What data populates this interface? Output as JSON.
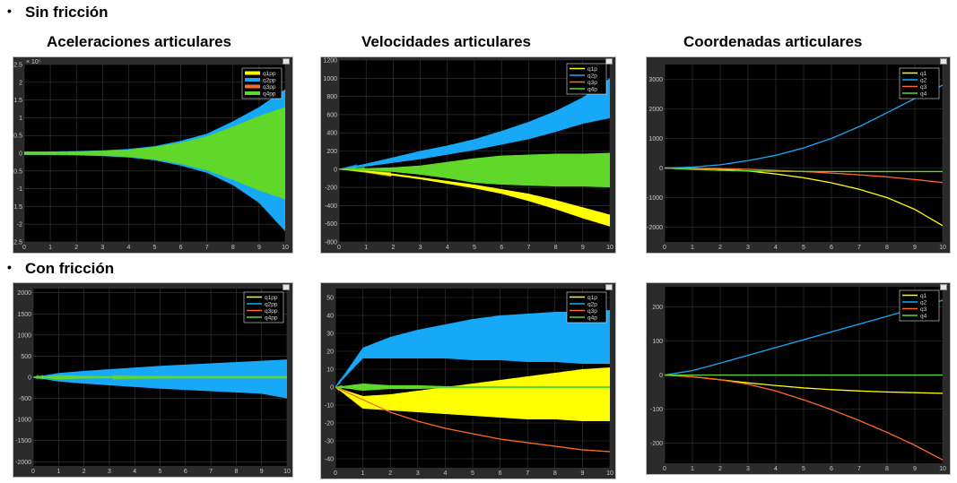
{
  "sections": [
    {
      "bullet": "•",
      "label": "Sin fricción"
    },
    {
      "bullet": "•",
      "label": "Con fricción"
    }
  ],
  "column_titles": [
    "Aceleraciones articulares",
    "Velocidades articulares",
    "Coordenadas articulares"
  ],
  "colors": {
    "q1": "#ffff00",
    "q2": "#18a8f8",
    "q3": "#ff6a2a",
    "q4": "#5fd829",
    "bg": "#000000",
    "grid": "#3a3a3a"
  },
  "chart_data": [
    {
      "type": "line",
      "id": "acc_nofric",
      "x": [
        0,
        1,
        2,
        3,
        4,
        5,
        6,
        7,
        8,
        9,
        10
      ],
      "xlim": [
        0,
        10
      ],
      "ylim": [
        -2.5,
        2.5
      ],
      "xticks": [
        "0",
        "1",
        "2",
        "3",
        "4",
        "5",
        "6",
        "7",
        "8",
        "9",
        "10"
      ],
      "yticks": [
        "-2.5",
        "-2",
        "-1.5",
        "-1",
        "-0.5",
        "0",
        "0.5",
        "1",
        "1.5",
        "2",
        "2.5"
      ],
      "yexponent": "× 10⁵",
      "grid": true,
      "legend": "top-right",
      "legend_style": "thick",
      "series": [
        {
          "name": "q1pp",
          "color": "#ffff00",
          "envelope_upper": [
            0.05,
            0.05,
            0.05,
            0.06,
            0.07,
            0.1,
            0.15,
            0.25,
            0.4,
            0.5,
            0.55
          ],
          "envelope_lower": [
            -0.05,
            -0.05,
            -0.05,
            -0.06,
            -0.07,
            -0.1,
            -0.15,
            -0.25,
            -0.4,
            -0.5,
            -0.55
          ]
        },
        {
          "name": "q2pp",
          "color": "#18a8f8",
          "envelope_upper": [
            0.05,
            0.05,
            0.06,
            0.08,
            0.12,
            0.2,
            0.35,
            0.55,
            0.9,
            1.3,
            1.8
          ],
          "envelope_lower": [
            -0.05,
            -0.05,
            -0.06,
            -0.08,
            -0.12,
            -0.2,
            -0.35,
            -0.55,
            -0.9,
            -1.4,
            -2.2
          ]
        },
        {
          "name": "q3pp",
          "color": "#ff6a2a",
          "envelope_upper": [
            0,
            0,
            0,
            0,
            0,
            0,
            0,
            0,
            0,
            0,
            0
          ],
          "envelope_lower": [
            0,
            0,
            0,
            0,
            0,
            0,
            0,
            0,
            0,
            0,
            0
          ]
        },
        {
          "name": "q4pp",
          "color": "#5fd829",
          "envelope_upper": [
            0.04,
            0.04,
            0.05,
            0.07,
            0.1,
            0.18,
            0.3,
            0.48,
            0.75,
            1.05,
            1.3
          ],
          "envelope_lower": [
            -0.04,
            -0.04,
            -0.05,
            -0.07,
            -0.1,
            -0.18,
            -0.3,
            -0.48,
            -0.75,
            -1.05,
            -1.3
          ]
        }
      ]
    },
    {
      "type": "line",
      "id": "vel_nofric",
      "x": [
        0,
        1,
        2,
        3,
        4,
        5,
        6,
        7,
        8,
        9,
        10
      ],
      "xlim": [
        0,
        10
      ],
      "ylim": [
        -800,
        1200
      ],
      "xticks": [
        "0",
        "1",
        "2",
        "3",
        "4",
        "5",
        "6",
        "7",
        "8",
        "9",
        "10"
      ],
      "yticks": [
        "-800",
        "-600",
        "-400",
        "-200",
        "0",
        "200",
        "400",
        "600",
        "800",
        "1000",
        "1200"
      ],
      "grid": true,
      "legend": "top-right",
      "series": [
        {
          "name": "q1p",
          "color": "#ffff00",
          "envelope_upper": [
            0,
            -20,
            -50,
            -90,
            -130,
            -170,
            -220,
            -270,
            -340,
            -420,
            -500
          ],
          "envelope_lower": [
            0,
            -30,
            -70,
            -110,
            -160,
            -210,
            -270,
            -350,
            -440,
            -540,
            -630
          ]
        },
        {
          "name": "q2p",
          "color": "#18a8f8",
          "envelope_upper": [
            0,
            60,
            130,
            200,
            260,
            330,
            420,
            520,
            640,
            790,
            1000
          ],
          "envelope_lower": [
            0,
            30,
            70,
            110,
            160,
            210,
            270,
            330,
            410,
            500,
            560
          ]
        },
        {
          "name": "q3p",
          "color": "#ff6a2a",
          "envelope_upper": [
            0,
            0,
            0,
            0,
            0,
            0,
            0,
            0,
            0,
            0,
            0
          ],
          "envelope_lower": [
            0,
            0,
            0,
            0,
            0,
            0,
            0,
            0,
            0,
            0,
            0
          ]
        },
        {
          "name": "q4p",
          "color": "#5fd829",
          "envelope_upper": [
            0,
            10,
            20,
            40,
            80,
            120,
            150,
            160,
            170,
            170,
            180
          ],
          "envelope_lower": [
            0,
            -10,
            -30,
            -60,
            -100,
            -150,
            -170,
            -180,
            -190,
            -190,
            -200
          ]
        }
      ]
    },
    {
      "type": "line",
      "id": "pos_nofric",
      "x": [
        0,
        1,
        2,
        3,
        4,
        5,
        6,
        7,
        8,
        9,
        10
      ],
      "xlim": [
        0,
        10
      ],
      "ylim": [
        -2500,
        3500
      ],
      "xticks": [
        "0",
        "1",
        "2",
        "3",
        "4",
        "5",
        "6",
        "7",
        "8",
        "9",
        "10"
      ],
      "yticks": [
        "-2000",
        "-1000",
        "0",
        "1000",
        "2000",
        "3000"
      ],
      "grid": true,
      "legend": "top-right",
      "series": [
        {
          "name": "q1",
          "color": "#ffff00",
          "values": [
            0,
            -10,
            -40,
            -100,
            -200,
            -330,
            -500,
            -720,
            -1000,
            -1400,
            -1950
          ]
        },
        {
          "name": "q2",
          "color": "#18a8f8",
          "values": [
            0,
            30,
            110,
            250,
            430,
            680,
            1000,
            1400,
            1870,
            2350,
            2800
          ]
        },
        {
          "name": "q3",
          "color": "#ff6a2a",
          "values": [
            0,
            -5,
            -20,
            -45,
            -80,
            -120,
            -170,
            -230,
            -300,
            -390,
            -490
          ]
        },
        {
          "name": "q4",
          "color": "#5fd829",
          "values": [
            0,
            -50,
            -80,
            -100,
            -110,
            -115,
            -118,
            -120,
            -120,
            -120,
            -120
          ]
        }
      ]
    },
    {
      "type": "line",
      "id": "acc_fric",
      "x": [
        0,
        1,
        2,
        3,
        4,
        5,
        6,
        7,
        8,
        9,
        10
      ],
      "xlim": [
        0,
        10
      ],
      "ylim": [
        -2100,
        2100
      ],
      "xticks": [
        "0",
        "1",
        "2",
        "3",
        "4",
        "5",
        "6",
        "7",
        "8",
        "9",
        "10"
      ],
      "yticks": [
        "-2000",
        "-1500",
        "-1000",
        "-500",
        "0",
        "500",
        "1000",
        "1500",
        "2000"
      ],
      "grid": true,
      "legend": "top-right",
      "series": [
        {
          "name": "q1pp",
          "color": "#ffff00",
          "envelope_upper": [
            0,
            90,
            120,
            150,
            180,
            200,
            220,
            240,
            260,
            280,
            290
          ],
          "envelope_lower": [
            0,
            -90,
            -120,
            -150,
            -180,
            -200,
            -220,
            -240,
            -260,
            -280,
            -290
          ]
        },
        {
          "name": "q2pp",
          "color": "#18a8f8",
          "envelope_upper": [
            0,
            100,
            150,
            190,
            230,
            270,
            300,
            330,
            360,
            390,
            420
          ],
          "envelope_lower": [
            0,
            -100,
            -150,
            -190,
            -230,
            -270,
            -300,
            -330,
            -360,
            -390,
            -500
          ]
        },
        {
          "name": "q3pp",
          "color": "#ff6a2a",
          "envelope_upper": [
            0,
            0,
            0,
            0,
            0,
            0,
            0,
            0,
            0,
            0,
            0
          ],
          "envelope_lower": [
            0,
            0,
            0,
            0,
            0,
            0,
            0,
            0,
            0,
            0,
            0
          ]
        },
        {
          "name": "q4pp",
          "color": "#5fd829",
          "envelope_upper": [
            0,
            50,
            30,
            20,
            15,
            12,
            10,
            10,
            10,
            10,
            10
          ],
          "envelope_lower": [
            0,
            -50,
            -30,
            -20,
            -15,
            -12,
            -10,
            -10,
            -10,
            -10,
            -10
          ]
        }
      ]
    },
    {
      "type": "line",
      "id": "vel_fric",
      "x": [
        0,
        1,
        2,
        3,
        4,
        5,
        6,
        7,
        8,
        9,
        10
      ],
      "xlim": [
        0,
        10
      ],
      "ylim": [
        -45,
        55
      ],
      "xticks": [
        "0",
        "1",
        "2",
        "3",
        "4",
        "5",
        "6",
        "7",
        "8",
        "9",
        "10"
      ],
      "yticks": [
        "-40",
        "-30",
        "-20",
        "-10",
        "0",
        "10",
        "20",
        "30",
        "40",
        "50"
      ],
      "grid": true,
      "legend": "top-right",
      "series": [
        {
          "name": "q1p",
          "color": "#ffff00",
          "envelope_upper": [
            0,
            -5,
            -4,
            -2,
            0,
            2,
            4,
            6,
            8,
            10,
            11
          ],
          "envelope_lower": [
            0,
            -12,
            -13,
            -14,
            -15,
            -16,
            -17,
            -18,
            -18,
            -19,
            -19
          ]
        },
        {
          "name": "q2p",
          "color": "#18a8f8",
          "envelope_upper": [
            0,
            22,
            28,
            32,
            35,
            38,
            40,
            41,
            42,
            42,
            43
          ],
          "envelope_lower": [
            0,
            16,
            16,
            16,
            16,
            15,
            15,
            14,
            14,
            13,
            13
          ]
        },
        {
          "name": "q3p",
          "color": "#ff6a2a",
          "values": [
            0,
            -7,
            -14,
            -19,
            -23,
            -26,
            -29,
            -31,
            -33,
            -35,
            -36
          ]
        },
        {
          "name": "q4p",
          "color": "#5fd829",
          "envelope_upper": [
            0,
            2,
            1,
            1,
            0.5,
            0.5,
            0.5,
            0.5,
            0.5,
            0.5,
            0.5
          ],
          "envelope_lower": [
            0,
            -2,
            -1,
            -1,
            -0.5,
            -0.5,
            -0.5,
            -0.5,
            -0.5,
            -0.5,
            -0.5
          ]
        }
      ]
    },
    {
      "type": "line",
      "id": "pos_fric",
      "x": [
        0,
        1,
        2,
        3,
        4,
        5,
        6,
        7,
        8,
        9,
        10
      ],
      "xlim": [
        0,
        10
      ],
      "ylim": [
        -260,
        260
      ],
      "xticks": [
        "0",
        "1",
        "2",
        "3",
        "4",
        "5",
        "6",
        "7",
        "8",
        "9",
        "10"
      ],
      "yticks": [
        "-200",
        "-100",
        "0",
        "100",
        "200"
      ],
      "grid": true,
      "legend": "top-right",
      "series": [
        {
          "name": "q1",
          "color": "#ffff00",
          "values": [
            0,
            -5,
            -14,
            -23,
            -31,
            -38,
            -43,
            -47,
            -50,
            -52,
            -54
          ]
        },
        {
          "name": "q2",
          "color": "#18a8f8",
          "values": [
            0,
            13,
            35,
            58,
            81,
            104,
            127,
            150,
            173,
            196,
            220
          ]
        },
        {
          "name": "q3",
          "color": "#ff6a2a",
          "values": [
            0,
            -5,
            -14,
            -27,
            -47,
            -73,
            -102,
            -134,
            -169,
            -207,
            -250
          ]
        },
        {
          "name": "q4",
          "color": "#5fd829",
          "values": [
            0,
            0,
            0,
            0,
            0,
            0,
            0,
            0,
            0,
            0,
            0
          ]
        }
      ]
    }
  ]
}
